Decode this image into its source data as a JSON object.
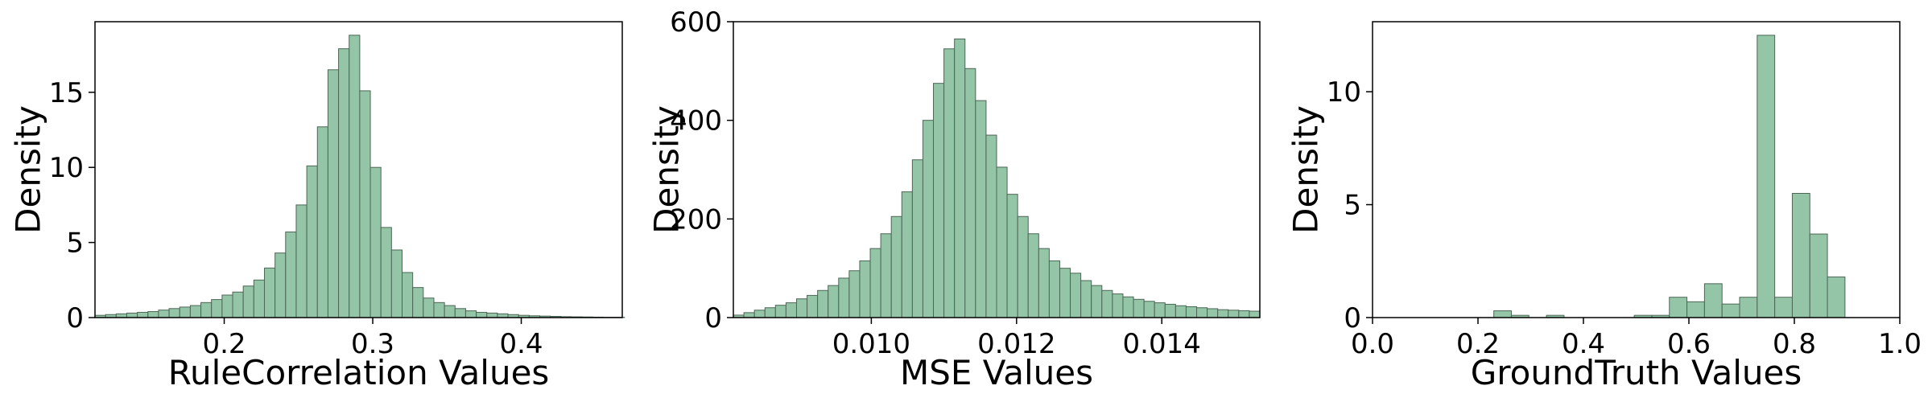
{
  "style": {
    "bar_fill": "#93c5a6",
    "bar_stroke": "#4d6656",
    "axis_color": "#000000"
  },
  "chart_data": [
    {
      "type": "histogram",
      "xlabel": "RuleCorrelation Values",
      "ylabel": "Density",
      "xlim": [
        0.113,
        0.468
      ],
      "ylim": [
        0,
        19.7
      ],
      "xticks": [
        0.2,
        0.3,
        0.4
      ],
      "xtick_labels": [
        "0.2",
        "0.3",
        "0.4"
      ],
      "yticks": [
        0,
        5,
        10,
        15
      ],
      "ytick_labels": [
        "0",
        "5",
        "10",
        "15"
      ],
      "bins": {
        "start": 0.113,
        "width": 0.00713,
        "densities": [
          0.15,
          0.2,
          0.25,
          0.3,
          0.35,
          0.4,
          0.5,
          0.6,
          0.7,
          0.8,
          1.0,
          1.2,
          1.5,
          1.7,
          2.1,
          2.5,
          3.3,
          4.3,
          5.7,
          7.5,
          10.1,
          12.7,
          16.5,
          17.9,
          18.8,
          15.1,
          10.0,
          6.0,
          4.5,
          3.0,
          2.0,
          1.3,
          1.0,
          0.8,
          0.6,
          0.45,
          0.35,
          0.3,
          0.25,
          0.2,
          0.15,
          0.12,
          0.1,
          0.08,
          0.06,
          0.05,
          0.04,
          0.03,
          0.02,
          0.02
        ]
      }
    },
    {
      "type": "histogram",
      "xlabel": "MSE Values",
      "ylabel": "Density",
      "xlim": [
        0.0081,
        0.01535
      ],
      "ylim": [
        0,
        600
      ],
      "xticks": [
        0.01,
        0.012,
        0.014
      ],
      "xtick_labels": [
        "0.010",
        "0.012",
        "0.014"
      ],
      "yticks": [
        0,
        200,
        400,
        600
      ],
      "ytick_labels": [
        "0",
        "200",
        "400",
        "600"
      ],
      "bins": {
        "start": 0.0081,
        "width": 0.000145,
        "densities": [
          5,
          10,
          15,
          20,
          25,
          30,
          38,
          45,
          55,
          65,
          80,
          95,
          115,
          140,
          170,
          205,
          255,
          320,
          400,
          475,
          545,
          565,
          505,
          440,
          370,
          305,
          250,
          205,
          170,
          140,
          115,
          100,
          90,
          75,
          65,
          55,
          48,
          42,
          37,
          33,
          30,
          27,
          24,
          22,
          20,
          18,
          16,
          15,
          14,
          13
        ]
      }
    },
    {
      "type": "histogram",
      "xlabel": "GroundTruth Values",
      "ylabel": "Density",
      "xlim": [
        0.0,
        1.0
      ],
      "ylim": [
        0,
        13.1
      ],
      "xticks": [
        0.0,
        0.2,
        0.4,
        0.6,
        0.8,
        1.0
      ],
      "xtick_labels": [
        "0.0",
        "0.2",
        "0.4",
        "0.6",
        "0.8",
        "1.0"
      ],
      "yticks": [
        0,
        5,
        10
      ],
      "ytick_labels": [
        "0",
        "5",
        "10"
      ],
      "bins": {
        "start": 0.23,
        "width": 0.0333,
        "densities": [
          0.3,
          0.1,
          0.0,
          0.1,
          0.0,
          0.0,
          0.0,
          0.0,
          0.1,
          0.1,
          0.9,
          0.7,
          1.5,
          0.6,
          0.9,
          12.5,
          0.9,
          5.5,
          3.7,
          1.8
        ]
      }
    }
  ]
}
